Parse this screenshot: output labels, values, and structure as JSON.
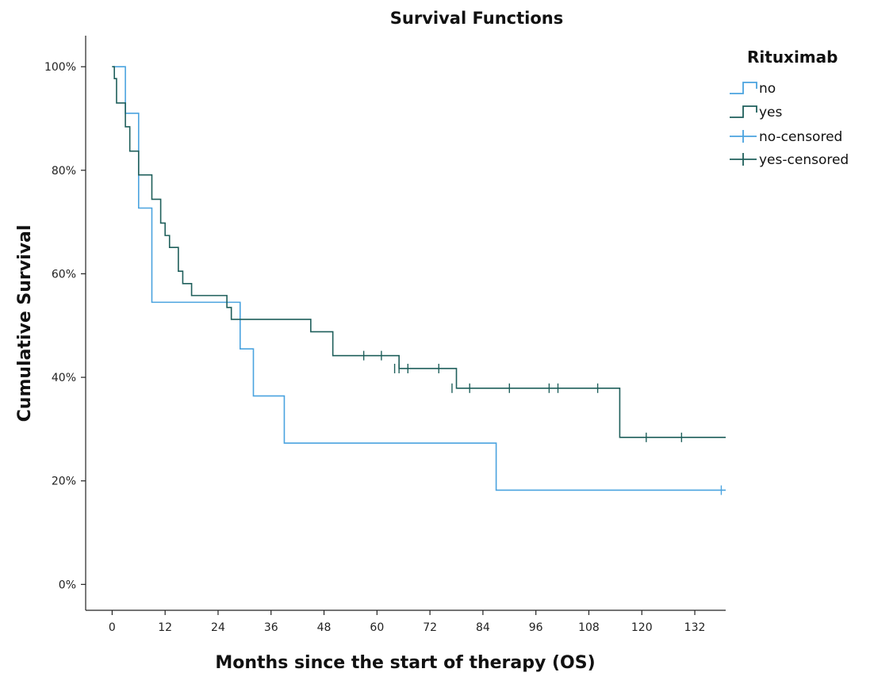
{
  "chart_data": {
    "type": "line",
    "step": true,
    "title": "Survival Functions",
    "xlabel": "Months since the start of therapy (OS)",
    "ylabel": "Cumulative Survival",
    "xlim": [
      -6,
      139
    ],
    "ylim": [
      -5,
      106
    ],
    "xticks": [
      0,
      12,
      24,
      36,
      48,
      60,
      72,
      84,
      96,
      108,
      120,
      132
    ],
    "yticks": [
      0,
      20,
      40,
      60,
      80,
      100
    ],
    "ytick_labels": [
      "0%",
      "20%",
      "40%",
      "60%",
      "80%",
      "100%"
    ],
    "grid": false,
    "legend": {
      "title": "Rituximab",
      "position": "top-right",
      "entries": [
        {
          "label": "no",
          "kind": "step",
          "color": "#4aa3df"
        },
        {
          "label": "yes",
          "kind": "step",
          "color": "#1f5f5b"
        },
        {
          "label": "no-censored",
          "kind": "censor",
          "color": "#4aa3df"
        },
        {
          "label": "yes-censored",
          "kind": "censor",
          "color": "#1f5f5b"
        }
      ]
    },
    "series": [
      {
        "name": "no",
        "color": "#4aa3df",
        "x": [
          0,
          3,
          6,
          9,
          29,
          32,
          39,
          87,
          139
        ],
        "y": [
          100,
          91,
          72.7,
          54.5,
          45.5,
          36.4,
          27.3,
          18.2,
          18.2
        ],
        "censored": [
          {
            "x": 138,
            "y": 18.2
          }
        ]
      },
      {
        "name": "yes",
        "color": "#1f5f5b",
        "x": [
          0,
          0.5,
          1,
          3,
          4,
          6,
          9,
          11,
          12,
          13,
          15,
          16,
          18,
          20,
          26,
          27,
          45,
          50,
          65,
          78,
          115,
          139
        ],
        "y": [
          100,
          97.7,
          93,
          88.4,
          83.7,
          79.1,
          74.4,
          69.8,
          67.4,
          65.1,
          60.5,
          58.1,
          55.8,
          55.8,
          53.5,
          51.2,
          48.8,
          44.2,
          41.7,
          37.9,
          28.4,
          28.4
        ],
        "censored": [
          {
            "x": 57,
            "y": 44.2
          },
          {
            "x": 61,
            "y": 44.2
          },
          {
            "x": 64,
            "y": 41.7
          },
          {
            "x": 65,
            "y": 41.7
          },
          {
            "x": 67,
            "y": 41.7
          },
          {
            "x": 74,
            "y": 41.7
          },
          {
            "x": 77,
            "y": 37.9
          },
          {
            "x": 81,
            "y": 37.9
          },
          {
            "x": 90,
            "y": 37.9
          },
          {
            "x": 99,
            "y": 37.9
          },
          {
            "x": 101,
            "y": 37.9
          },
          {
            "x": 110,
            "y": 37.9
          },
          {
            "x": 121,
            "y": 28.4
          },
          {
            "x": 129,
            "y": 28.4
          }
        ]
      }
    ]
  }
}
